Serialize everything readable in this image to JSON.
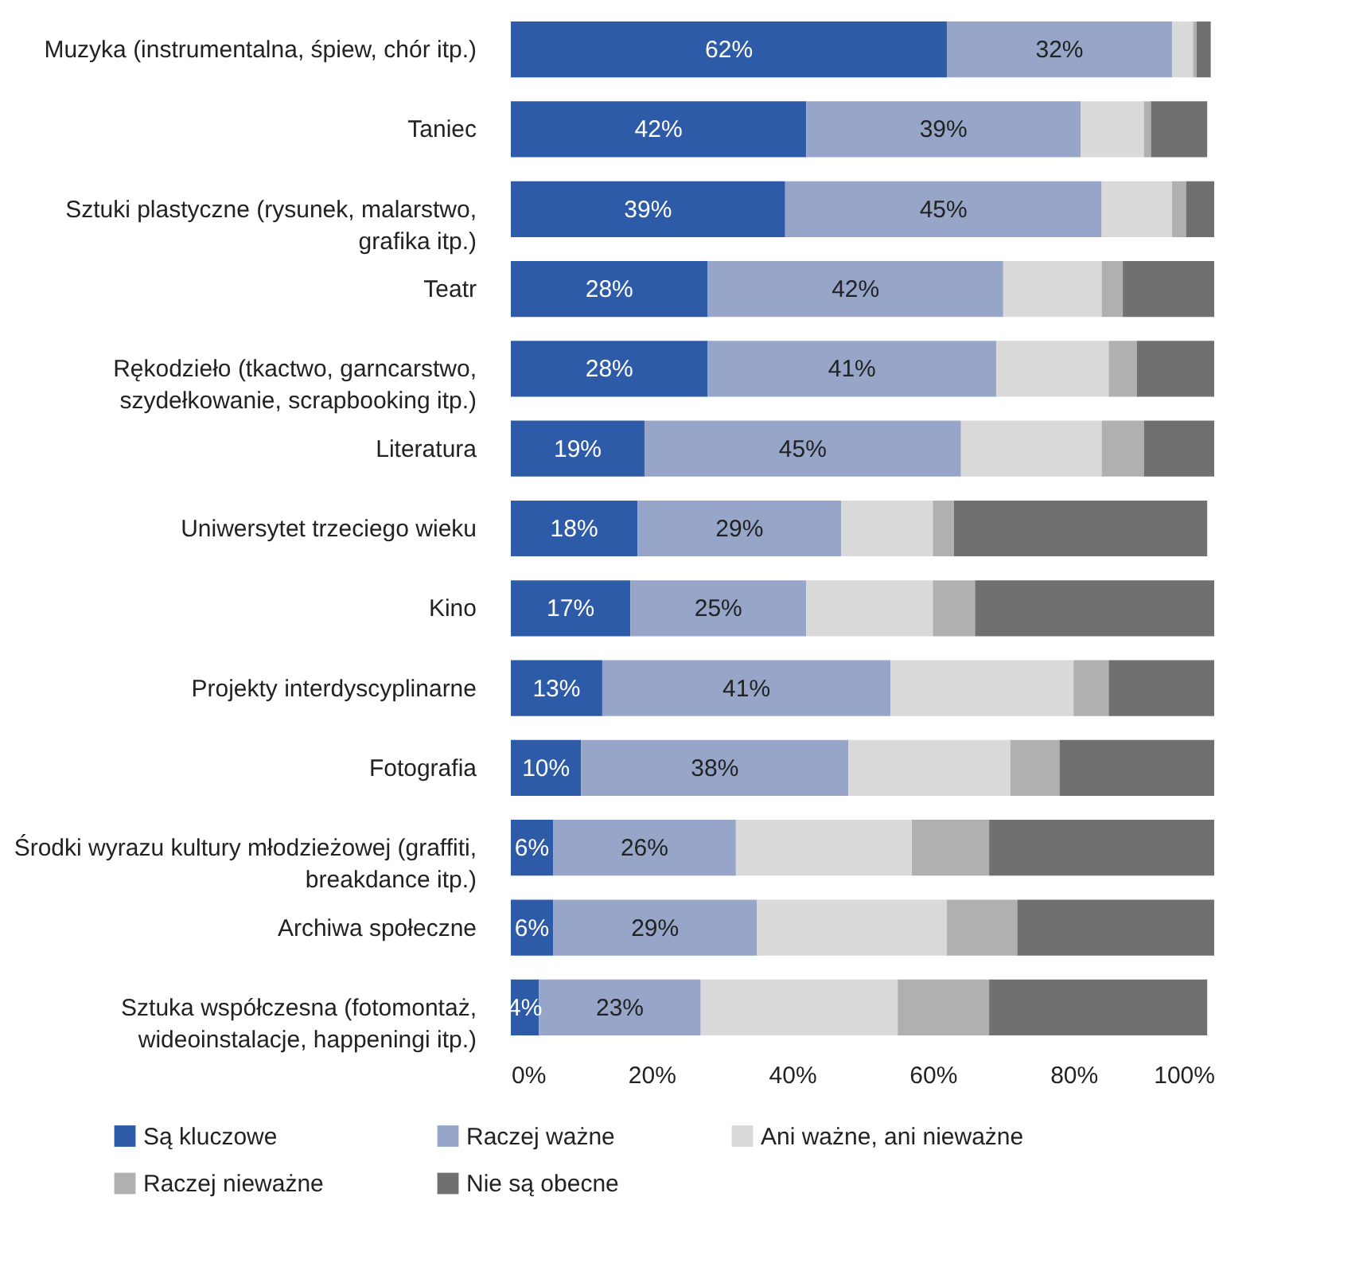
{
  "chart_data": {
    "type": "bar",
    "orientation": "horizontal",
    "stacked": true,
    "categories": [
      "Muzyka (instrumentalna, śpiew, chór itp.)",
      "Taniec",
      "Sztuki plastyczne (rysunek, malarstwo, grafika itp.)",
      "Teatr",
      "Rękodzieło (tkactwo, garncarstwo, szydełkowanie, scrapbooking itp.)",
      "Literatura",
      "Uniwersytet trzeciego wieku",
      "Kino",
      "Projekty interdyscyplinarne",
      "Fotografia",
      "Środki wyrazu kultury młodzieżowej (graffiti, breakdance itp.)",
      "Archiwa społeczne",
      "Sztuka współczesna (fotomontaż, wideoinstalacje, happeningi itp.)"
    ],
    "series": [
      {
        "name": "Są kluczowe",
        "color": "#2d5ba8",
        "values": [
          62,
          42,
          39,
          28,
          28,
          19,
          18,
          17,
          13,
          10,
          6,
          6,
          4
        ],
        "value_labels": [
          "62%",
          "42%",
          "39%",
          "28%",
          "28%",
          "19%",
          "18%",
          "17%",
          "13%",
          "10%",
          "6%",
          "6%",
          "4%"
        ]
      },
      {
        "name": "Raczej ważne",
        "color": "#96a5c8",
        "values": [
          32,
          39,
          45,
          42,
          41,
          45,
          29,
          25,
          41,
          38,
          26,
          29,
          23
        ],
        "value_labels": [
          "32%",
          "39%",
          "45%",
          "42%",
          "41%",
          "45%",
          "29%",
          "25%",
          "41%",
          "38%",
          "26%",
          "29%",
          "23%"
        ]
      },
      {
        "name": "Ani ważne, ani nieważne",
        "color": "#d9d9d9",
        "values": [
          3,
          9,
          10,
          14,
          16,
          20,
          13,
          18,
          26,
          23,
          25,
          27,
          28
        ]
      },
      {
        "name": "Raczej nieważne",
        "color": "#b0b0b0",
        "values": [
          0.5,
          1,
          2,
          3,
          4,
          6,
          3,
          6,
          5,
          7,
          11,
          10,
          13
        ]
      },
      {
        "name": "Nie są obecne",
        "color": "#707070",
        "values": [
          2,
          8,
          4,
          13,
          11,
          10,
          36,
          34,
          15,
          22,
          32,
          28,
          31
        ]
      }
    ],
    "xlim": [
      0,
      100
    ],
    "xticks": [
      {
        "value": 0,
        "label": "0%"
      },
      {
        "value": 20,
        "label": "20%"
      },
      {
        "value": 40,
        "label": "40%"
      },
      {
        "value": 60,
        "label": "60%"
      },
      {
        "value": 80,
        "label": "80%"
      },
      {
        "value": 100,
        "label": "100%"
      }
    ],
    "grid": false,
    "legend": "bottom"
  }
}
